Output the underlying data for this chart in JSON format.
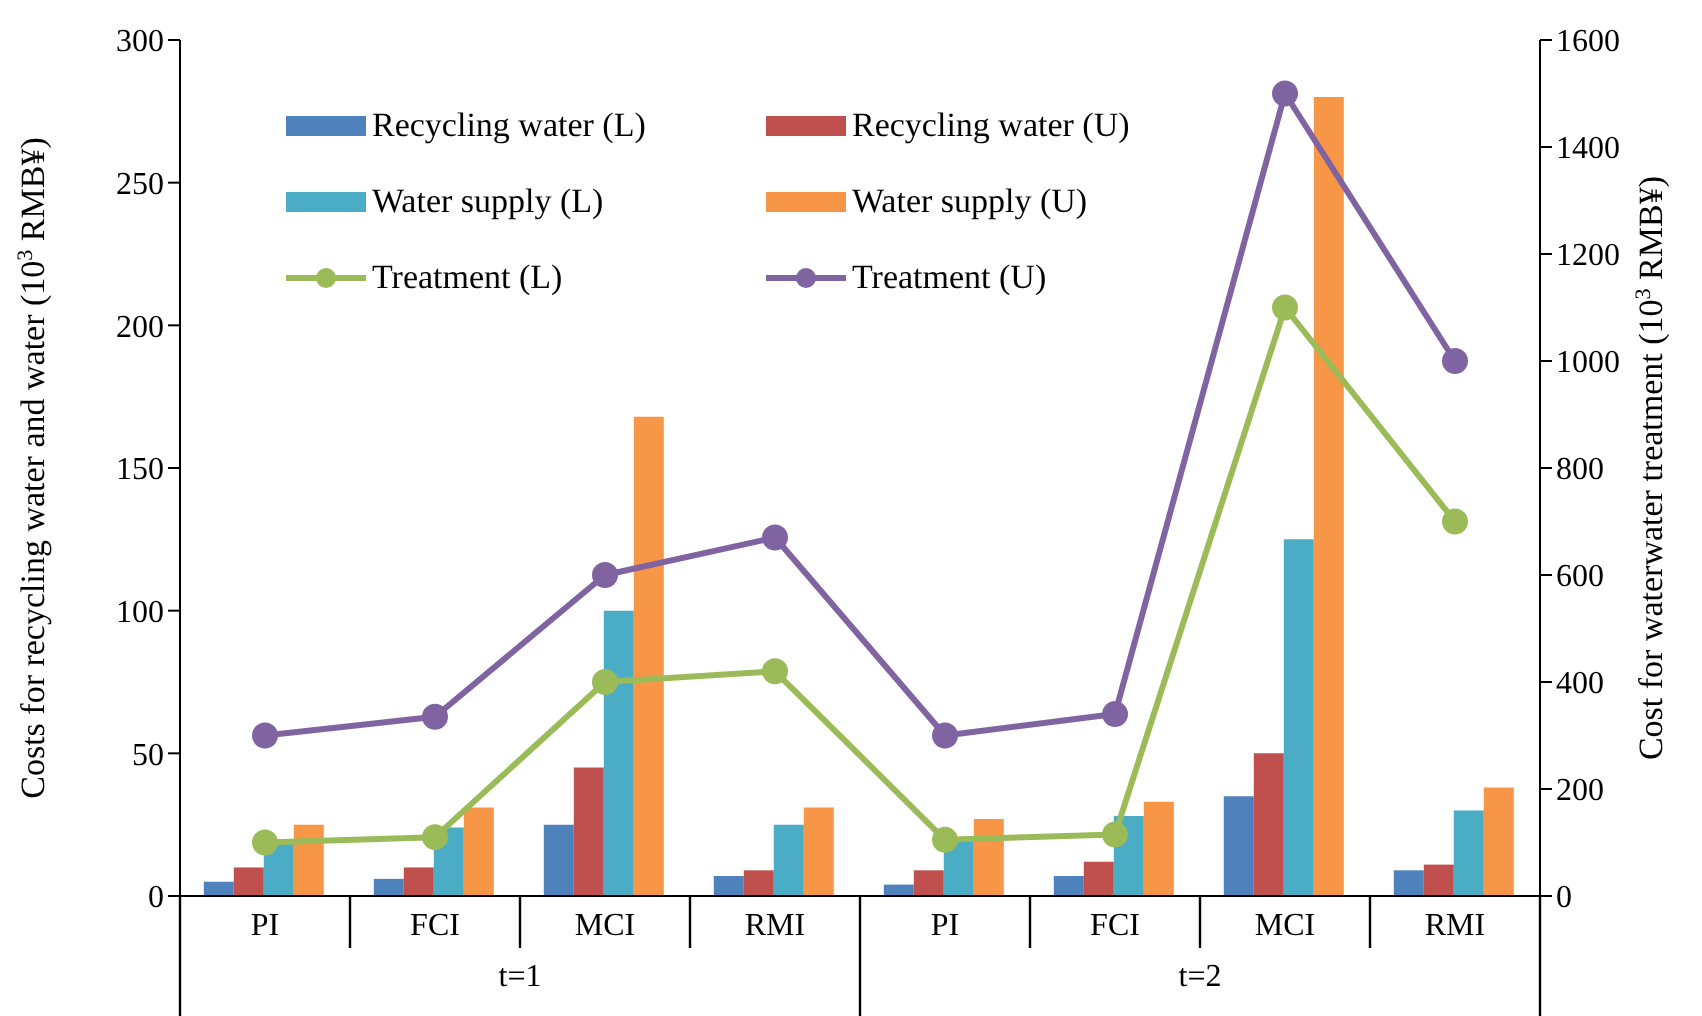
{
  "chart_data": {
    "type": "bar",
    "categories": [
      "PI",
      "FCI",
      "MCI",
      "RMI",
      "PI",
      "FCI",
      "MCI",
      "RMI"
    ],
    "ylabel": "Costs for recycling water and water (10$^{3}$  RMB¥)",
    "y2label": "Cost for waterwater treatment (10$^{3}$  RMB¥)",
    "annotations": [
      "t=1",
      "t=2"
    ],
    "ylim": [
      0,
      300
    ],
    "yticks": [
      0,
      50,
      100,
      150,
      200,
      250,
      300
    ],
    "y2lim": [
      0,
      1600
    ],
    "y2ticks": [
      0,
      200,
      400,
      600,
      800,
      1000,
      1200,
      1400,
      1600
    ],
    "legend": "top left",
    "marker": "circle",
    "series": [
      {
        "name": "Recycling water (L)",
        "color": "#4f81bd",
        "values": [
          5,
          6,
          25,
          7,
          4,
          7,
          35,
          9
        ]
      },
      {
        "name": "Recycling water (U)",
        "color": "#c0504d",
        "values": [
          10,
          10,
          45,
          9,
          9,
          12,
          50,
          11
        ]
      },
      {
        "name": "Water supply (L)",
        "color": "#4bacc6",
        "values": [
          19,
          24,
          100,
          25,
          20,
          28,
          125,
          30
        ]
      },
      {
        "name": "Water supply (U)",
        "color": "#f79646",
        "values": [
          25,
          31,
          168,
          31,
          27,
          33,
          280,
          38
        ]
      },
      {
        "name": "Treatment (L)",
        "type": "line",
        "axis": "y2",
        "color": "#9bbb59",
        "values": [
          100,
          110,
          400,
          420,
          105,
          115,
          1100,
          700
        ]
      },
      {
        "name": "Treatment (U)",
        "type": "line",
        "axis": "y2",
        "color": "#8064a2",
        "values": [
          300,
          335,
          600,
          670,
          300,
          340,
          1500,
          1000
        ]
      }
    ]
  }
}
